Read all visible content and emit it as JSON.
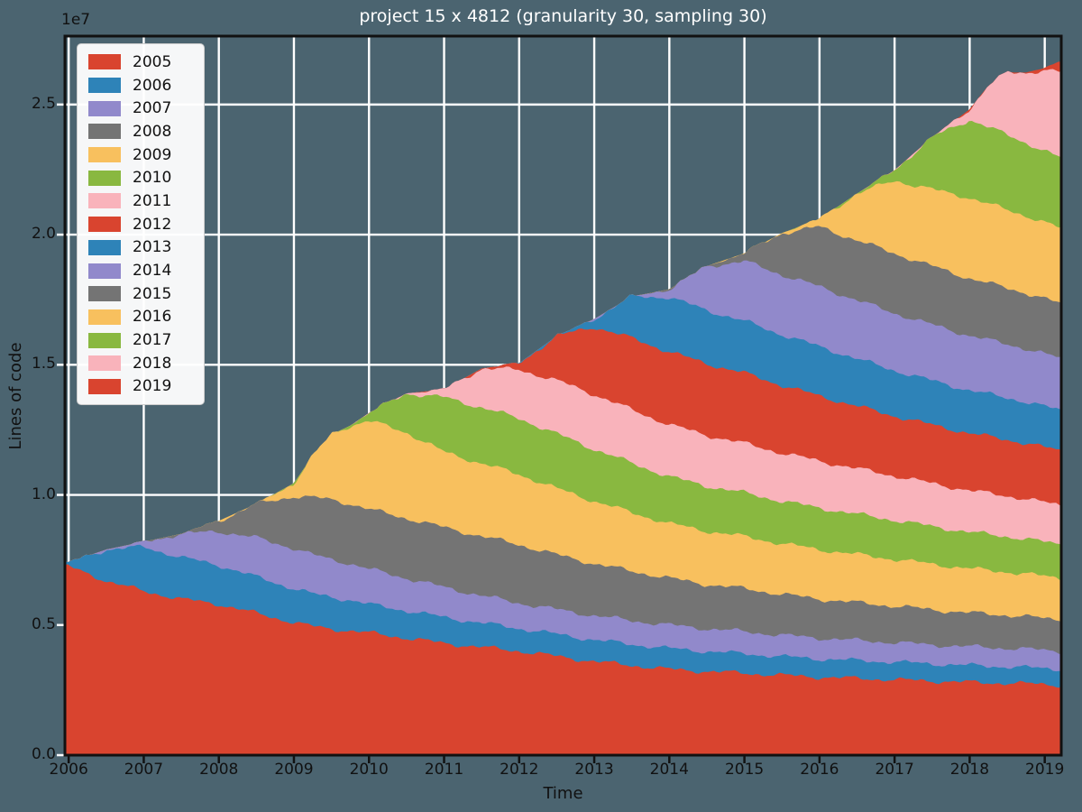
{
  "title": "project 15 x 4812 (granularity 30, sampling 30)",
  "colors": {
    "figure_background": "#4b6470",
    "grid": "#ffffff",
    "spine": "#111111",
    "title_text": "#ffffff",
    "axis_text": "#111111",
    "legend_background": "#ffffff",
    "red": "#d9442f",
    "blue": "#2e83b8",
    "purple": "#9189cb",
    "gray": "#747474",
    "orange": "#f8c05e",
    "green": "#89b840",
    "pink": "#f9b3bb"
  },
  "chart_data": {
    "type": "area",
    "stacked": true,
    "title": "project 15 x 4812 (granularity 30, sampling 30)",
    "xlabel": "Time",
    "ylabel": "Lines of code",
    "y_offset_label": "1e7",
    "unit": "millions of lines of code",
    "grid": true,
    "legend_position": "upper left",
    "xlim": [
      2005.95,
      2019.22
    ],
    "ylim_millions": [
      0,
      27.63
    ],
    "xticks": [
      {
        "label": "2006",
        "x": 2006
      },
      {
        "label": "2007",
        "x": 2007
      },
      {
        "label": "2008",
        "x": 2008
      },
      {
        "label": "2009",
        "x": 2009
      },
      {
        "label": "2010",
        "x": 2010
      },
      {
        "label": "2011",
        "x": 2011
      },
      {
        "label": "2012",
        "x": 2012
      },
      {
        "label": "2013",
        "x": 2013
      },
      {
        "label": "2014",
        "x": 2014
      },
      {
        "label": "2015",
        "x": 2015
      },
      {
        "label": "2016",
        "x": 2016
      },
      {
        "label": "2017",
        "x": 2017
      },
      {
        "label": "2018",
        "x": 2018
      },
      {
        "label": "2019",
        "x": 2019
      }
    ],
    "yticks": [
      {
        "label": "0.0",
        "v": 0
      },
      {
        "label": "0.5",
        "v": 5
      },
      {
        "label": "1.0",
        "v": 10
      },
      {
        "label": "1.5",
        "v": 15
      },
      {
        "label": "2.0",
        "v": 20
      },
      {
        "label": "2.5",
        "v": 25
      }
    ],
    "x": [
      2006,
      2006.5,
      2007,
      2007.5,
      2008,
      2008.5,
      2009,
      2009.25,
      2009.5,
      2009.75,
      2010,
      2010.5,
      2011,
      2011.5,
      2012,
      2012.5,
      2013,
      2013.5,
      2014,
      2014.5,
      2015,
      2015.5,
      2016,
      2016.5,
      2017,
      2017.5,
      2018,
      2018.25,
      2018.5,
      2018.75,
      2019,
      2019.2
    ],
    "series": [
      {
        "name": "2005",
        "color": "#d9442f",
        "values": [
          7.25,
          6.7,
          6.3,
          6.0,
          5.8,
          5.45,
          5.1,
          4.95,
          4.85,
          4.78,
          4.7,
          4.5,
          4.3,
          4.15,
          4.0,
          3.8,
          3.6,
          3.45,
          3.3,
          3.22,
          3.15,
          3.07,
          3.0,
          2.95,
          2.9,
          2.85,
          2.8,
          2.78,
          2.77,
          2.75,
          2.72,
          2.7
        ]
      },
      {
        "name": "2006",
        "color": "#2e83b8",
        "values": [
          0.15,
          1.2,
          1.7,
          1.6,
          1.5,
          1.4,
          1.3,
          1.25,
          1.22,
          1.18,
          1.1,
          1.05,
          1.0,
          0.93,
          0.87,
          0.85,
          0.83,
          0.81,
          0.8,
          0.77,
          0.75,
          0.72,
          0.7,
          0.69,
          0.68,
          0.66,
          0.65,
          0.64,
          0.63,
          0.62,
          0.61,
          0.6
        ]
      },
      {
        "name": "2007",
        "color": "#9189cb",
        "values": [
          0,
          0,
          0.2,
          0.9,
          1.3,
          1.5,
          1.55,
          1.5,
          1.45,
          1.4,
          1.35,
          1.25,
          1.15,
          1.05,
          0.97,
          0.95,
          0.93,
          0.91,
          0.9,
          0.87,
          0.85,
          0.82,
          0.8,
          0.77,
          0.75,
          0.73,
          0.72,
          0.72,
          0.71,
          0.71,
          0.7,
          0.7
        ]
      },
      {
        "name": "2008",
        "color": "#747474",
        "values": [
          0,
          0,
          0,
          0,
          0.4,
          1.3,
          2.0,
          2.2,
          2.3,
          2.3,
          2.3,
          2.3,
          2.3,
          2.28,
          2.25,
          2.1,
          2.0,
          1.9,
          1.8,
          1.7,
          1.65,
          1.57,
          1.5,
          1.45,
          1.4,
          1.35,
          1.3,
          1.28,
          1.27,
          1.25,
          1.22,
          1.2
        ]
      },
      {
        "name": "2009",
        "color": "#f8c05e",
        "values": [
          0,
          0,
          0,
          0,
          0,
          0,
          0.5,
          1.6,
          2.5,
          3.0,
          3.4,
          3.3,
          2.9,
          2.8,
          2.7,
          2.55,
          2.4,
          2.25,
          2.1,
          2.05,
          2.0,
          1.95,
          1.9,
          1.85,
          1.8,
          1.75,
          1.7,
          1.68,
          1.66,
          1.64,
          1.62,
          1.6
        ]
      },
      {
        "name": "2010",
        "color": "#89b840",
        "values": [
          0,
          0,
          0,
          0,
          0,
          0,
          0,
          0,
          0,
          0,
          0.3,
          1.5,
          2.1,
          2.15,
          2.15,
          2.1,
          2.0,
          1.9,
          1.8,
          1.73,
          1.68,
          1.63,
          1.6,
          1.55,
          1.5,
          1.45,
          1.4,
          1.38,
          1.36,
          1.34,
          1.32,
          1.3
        ]
      },
      {
        "name": "2011",
        "color": "#f9b3bb",
        "values": [
          0,
          0,
          0,
          0,
          0,
          0,
          0,
          0,
          0,
          0,
          0,
          0,
          0.3,
          1.5,
          1.87,
          2.05,
          2.1,
          2.05,
          2.0,
          1.95,
          1.9,
          1.85,
          1.8,
          1.75,
          1.7,
          1.65,
          1.6,
          1.58,
          1.56,
          1.54,
          1.52,
          1.5
        ]
      },
      {
        "name": "2012",
        "color": "#d9442f",
        "values": [
          0,
          0,
          0,
          0,
          0,
          0,
          0,
          0,
          0,
          0,
          0,
          0,
          0,
          0,
          0.25,
          1.7,
          2.6,
          2.75,
          2.8,
          2.75,
          2.7,
          2.6,
          2.5,
          2.4,
          2.3,
          2.25,
          2.2,
          2.18,
          2.16,
          2.14,
          2.12,
          2.1
        ]
      },
      {
        "name": "2013",
        "color": "#2e83b8",
        "values": [
          0,
          0,
          0,
          0,
          0,
          0,
          0,
          0,
          0,
          0,
          0,
          0,
          0,
          0,
          0,
          0,
          0.3,
          1.6,
          2.1,
          2.05,
          2.0,
          1.95,
          1.9,
          1.82,
          1.75,
          1.7,
          1.65,
          1.63,
          1.61,
          1.59,
          1.57,
          1.55
        ]
      },
      {
        "name": "2014",
        "color": "#9189cb",
        "values": [
          0,
          0,
          0,
          0,
          0,
          0,
          0,
          0,
          0,
          0,
          0,
          0,
          0,
          0,
          0,
          0,
          0,
          0,
          0.3,
          1.7,
          2.3,
          2.3,
          2.3,
          2.25,
          2.2,
          2.15,
          2.1,
          2.08,
          2.06,
          2.04,
          2.02,
          2.0
        ]
      },
      {
        "name": "2015",
        "color": "#747474",
        "values": [
          0,
          0,
          0,
          0,
          0,
          0,
          0,
          0,
          0,
          0,
          0,
          0,
          0,
          0,
          0,
          0,
          0,
          0,
          0,
          0,
          0.3,
          1.6,
          2.3,
          2.3,
          2.3,
          2.25,
          2.2,
          2.18,
          2.16,
          2.14,
          2.12,
          2.1
        ]
      },
      {
        "name": "2016",
        "color": "#f8c05e",
        "values": [
          0,
          0,
          0,
          0,
          0,
          0,
          0,
          0,
          0,
          0,
          0,
          0,
          0,
          0,
          0,
          0,
          0,
          0,
          0,
          0,
          0,
          0,
          0.3,
          1.8,
          2.8,
          2.95,
          3.1,
          3.05,
          3.0,
          2.97,
          2.93,
          2.9
        ]
      },
      {
        "name": "2017",
        "color": "#89b840",
        "values": [
          0,
          0,
          0,
          0,
          0,
          0,
          0,
          0,
          0,
          0,
          0,
          0,
          0,
          0,
          0,
          0,
          0,
          0,
          0,
          0,
          0,
          0,
          0,
          0,
          0.4,
          2.0,
          3.0,
          2.95,
          2.88,
          2.8,
          2.75,
          2.7
        ]
      },
      {
        "name": "2018",
        "color": "#f9b3bb",
        "values": [
          0,
          0,
          0,
          0,
          0,
          0,
          0,
          0,
          0,
          0,
          0,
          0,
          0,
          0,
          0,
          0,
          0,
          0,
          0,
          0,
          0,
          0,
          0,
          0,
          0,
          0,
          0.4,
          1.6,
          2.4,
          2.7,
          3.1,
          3.3
        ]
      },
      {
        "name": "2019",
        "color": "#d9442f",
        "values": [
          0,
          0,
          0,
          0,
          0,
          0,
          0,
          0,
          0,
          0,
          0,
          0,
          0,
          0,
          0,
          0,
          0,
          0,
          0,
          0,
          0,
          0,
          0,
          0,
          0,
          0,
          0,
          0,
          0,
          0,
          0.1,
          0.35
        ]
      }
    ]
  }
}
